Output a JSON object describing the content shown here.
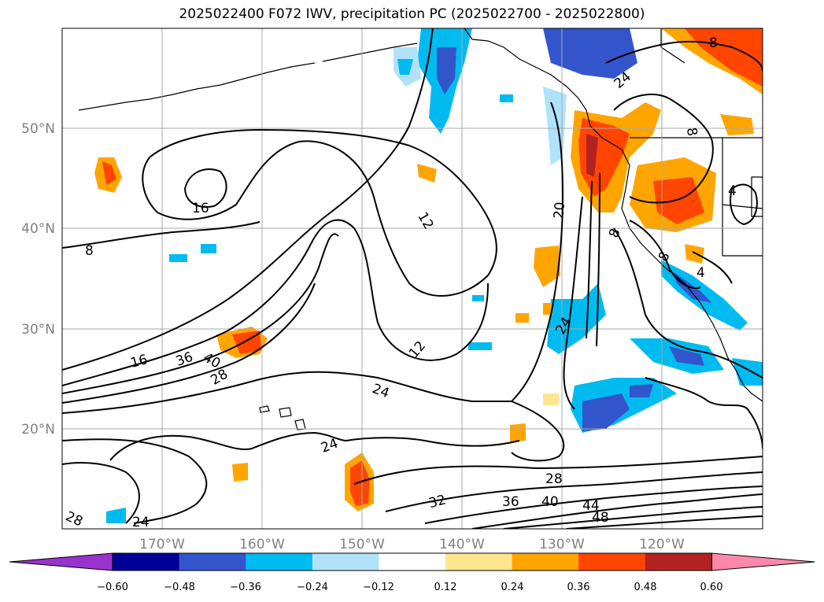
{
  "title": "2025022400 F072 IWV, precipitation PC (2025022700 - 2025022800)",
  "longitude_labels": [
    "170°W",
    "160°W",
    "150°W",
    "140°W",
    "130°W",
    "120°W"
  ],
  "latitude_labels": [
    "50°N",
    "40°N",
    "30°N",
    "20°N"
  ],
  "contour_labels": [
    "8",
    "8",
    "16",
    "12",
    "12",
    "20",
    "16",
    "36",
    "40",
    "28",
    "24",
    "24",
    "24",
    "28",
    "32",
    "36",
    "40",
    "44",
    "48",
    "28",
    "24",
    "8",
    "8",
    "4",
    "4",
    "8",
    "24"
  ],
  "colorbar": {
    "tick_labels": [
      "−0.60",
      "−0.48",
      "−0.36",
      "−0.24",
      "−0.12",
      "0.12",
      "0.24",
      "0.36",
      "0.48",
      "0.60"
    ],
    "colors": [
      "#9933cc",
      "#000099",
      "#3355cc",
      "#00bbf0",
      "#b0e2fa",
      "#ffffff",
      "#fde690",
      "#ffa500",
      "#ff4500",
      "#b22222",
      "#ff88aa"
    ]
  },
  "colors": {
    "land_outline": "#000000",
    "grid": "#aaaaaa",
    "contour": "#000000"
  }
}
